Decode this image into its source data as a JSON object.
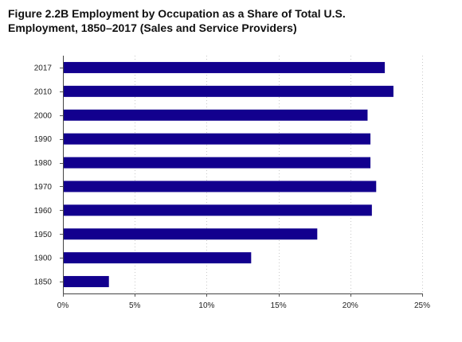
{
  "title_line1": "Figure 2.2B Employment by Occupation as a Share of Total U.S.",
  "title_line2": "Employment, 1850–2017 (Sales and Service Providers)",
  "chart_data": {
    "type": "bar",
    "orientation": "horizontal",
    "title": "Figure 2.2B Employment by Occupation as a Share of Total U.S. Employment, 1850–2017 (Sales and Service Providers)",
    "categories": [
      "2017",
      "2010",
      "2000",
      "1990",
      "1980",
      "1970",
      "1960",
      "1950",
      "1900",
      "1850"
    ],
    "values": [
      22.4,
      23.0,
      21.2,
      21.4,
      21.4,
      21.8,
      21.5,
      17.7,
      13.1,
      3.2
    ],
    "xlim": [
      0,
      25
    ],
    "x_ticks": [
      0,
      5,
      10,
      15,
      20,
      25
    ],
    "x_tick_labels": [
      "0%",
      "5%",
      "10%",
      "15%",
      "20%",
      "25%"
    ],
    "grid": "vertical dotted",
    "bar_color": "#12008e",
    "xlabel": "",
    "ylabel": ""
  }
}
